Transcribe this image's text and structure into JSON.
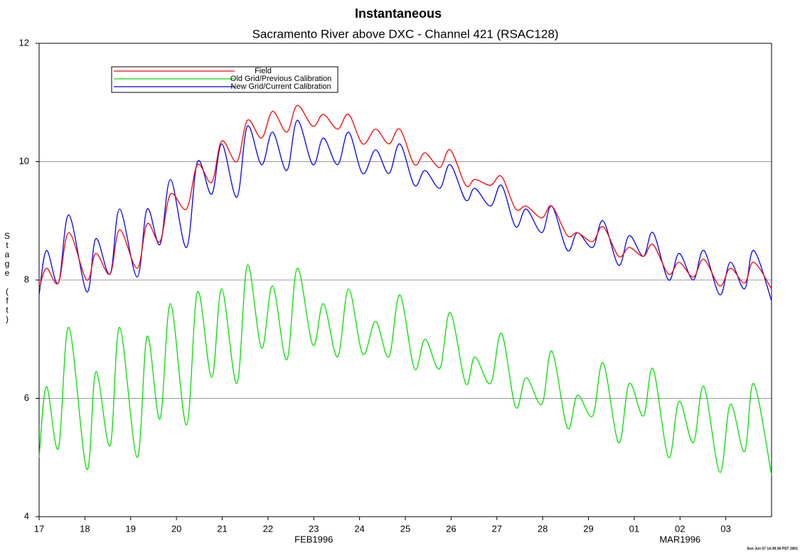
{
  "chart_data": {
    "type": "line",
    "title": "Instantaneous",
    "subtitle": "Sacramento River above DXC - Channel 421 (RSAC128)",
    "y_label": "Stage (ft)",
    "footer": "Sun Jun 07 14:39:36 PST 2001",
    "x": [
      0,
      0.16,
      0.42,
      0.65,
      1.04,
      1.24,
      1.55,
      1.76,
      2.14,
      2.36,
      2.64,
      2.87,
      3.22,
      3.46,
      3.77,
      3.99,
      4.32,
      4.55,
      4.86,
      5.1,
      5.41,
      5.64,
      5.98,
      6.21,
      6.52,
      6.76,
      7.07,
      7.35,
      7.64,
      7.88,
      8.2,
      8.43,
      8.75,
      8.98,
      9.32,
      9.52,
      9.86,
      10.1,
      10.41,
      10.64,
      10.98,
      11.2,
      11.54,
      11.76,
      12.09,
      12.32,
      12.66,
      12.89,
      13.2,
      13.41,
      13.75,
      13.98,
      14.29,
      14.52,
      14.87,
      15.1,
      15.41,
      15.61,
      16
    ],
    "series": [
      {
        "name": "Field",
        "color": "#ff0000",
        "values": [
          7.85,
          8.2,
          7.95,
          8.8,
          8.0,
          8.45,
          8.1,
          8.85,
          8.2,
          8.95,
          8.65,
          9.45,
          9.2,
          9.95,
          9.65,
          10.35,
          10.0,
          10.7,
          10.4,
          10.85,
          10.5,
          10.95,
          10.6,
          10.8,
          10.55,
          10.8,
          10.3,
          10.55,
          10.3,
          10.55,
          9.95,
          10.15,
          9.9,
          10.2,
          9.6,
          9.7,
          9.6,
          9.75,
          9.2,
          9.25,
          9.05,
          9.25,
          8.75,
          8.8,
          8.65,
          8.9,
          8.4,
          8.55,
          8.4,
          8.6,
          8.1,
          8.3,
          8.05,
          8.35,
          7.9,
          8.2,
          7.95,
          8.3,
          7.85
        ]
      },
      {
        "name": "Old Grid/Previous Calibration",
        "color": "#00e000",
        "values": [
          5.0,
          6.2,
          5.15,
          7.2,
          4.8,
          6.45,
          5.2,
          7.2,
          5.0,
          7.05,
          5.65,
          7.6,
          5.55,
          7.8,
          6.35,
          7.85,
          6.25,
          8.25,
          6.85,
          7.9,
          6.65,
          8.2,
          6.9,
          7.6,
          6.7,
          7.85,
          6.75,
          7.3,
          6.7,
          7.75,
          6.5,
          7.0,
          6.5,
          7.45,
          6.25,
          6.7,
          6.25,
          7.1,
          5.85,
          6.35,
          5.9,
          6.8,
          5.5,
          6.05,
          5.7,
          6.6,
          5.25,
          6.25,
          5.7,
          6.5,
          5.0,
          5.95,
          5.25,
          6.2,
          4.75,
          5.9,
          5.1,
          6.25,
          4.7
        ]
      },
      {
        "name": "New Grid/Current Calibration",
        "color": "#0000ff",
        "values": [
          7.75,
          8.5,
          7.95,
          9.1,
          7.8,
          8.7,
          8.1,
          9.2,
          8.05,
          9.2,
          8.6,
          9.7,
          8.55,
          10.0,
          9.45,
          10.3,
          9.4,
          10.6,
          9.95,
          10.5,
          9.85,
          10.7,
          9.95,
          10.4,
          9.95,
          10.5,
          9.8,
          10.2,
          9.8,
          10.3,
          9.6,
          9.85,
          9.55,
          9.95,
          9.35,
          9.55,
          9.25,
          9.6,
          8.9,
          9.2,
          8.8,
          9.25,
          8.5,
          8.8,
          8.55,
          9.0,
          8.25,
          8.75,
          8.4,
          8.8,
          8.0,
          8.45,
          8.0,
          8.5,
          7.75,
          8.3,
          7.85,
          8.5,
          7.65
        ]
      }
    ],
    "xlim": [
      0,
      16
    ],
    "xticks": [
      {
        "value": 0,
        "label": "17"
      },
      {
        "value": 1,
        "label": "18"
      },
      {
        "value": 2,
        "label": "19"
      },
      {
        "value": 3,
        "label": "20"
      },
      {
        "value": 4,
        "label": "21"
      },
      {
        "value": 5,
        "label": "22"
      },
      {
        "value": 6,
        "label": "23"
      },
      {
        "value": 7,
        "label": "24"
      },
      {
        "value": 8,
        "label": "25"
      },
      {
        "value": 9,
        "label": "26"
      },
      {
        "value": 10,
        "label": "27"
      },
      {
        "value": 11,
        "label": "28"
      },
      {
        "value": 12,
        "label": "29"
      },
      {
        "value": 13,
        "label": "01"
      },
      {
        "value": 14,
        "label": "02"
      },
      {
        "value": 15,
        "label": "03"
      }
    ],
    "x_month_labels": [
      {
        "value": 6,
        "label": "FEB1996"
      },
      {
        "value": 14,
        "label": "MAR1996"
      }
    ],
    "ylim": [
      4,
      12
    ],
    "yticks": [
      4,
      6,
      8,
      10,
      12
    ],
    "grid": true
  }
}
